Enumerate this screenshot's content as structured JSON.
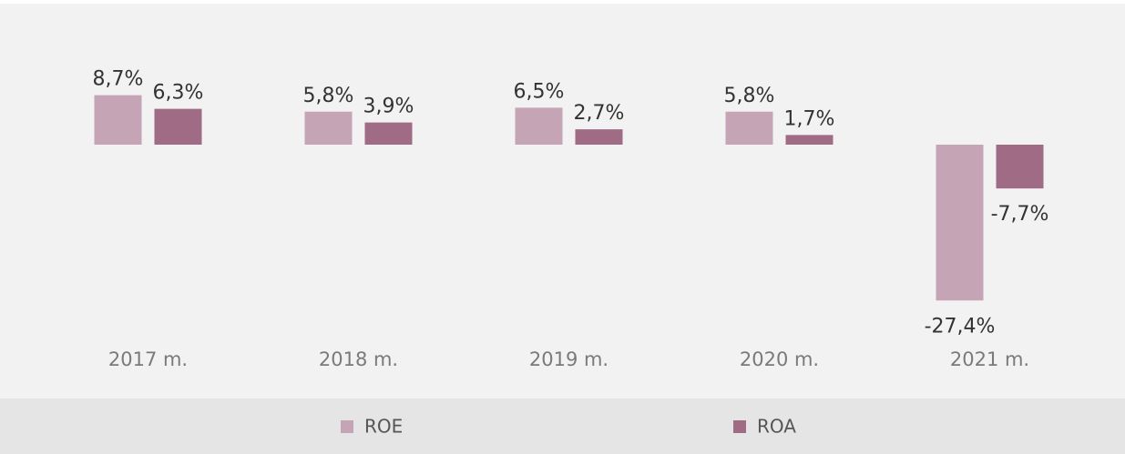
{
  "chart_data": {
    "type": "bar",
    "categories": [
      "2017 m.",
      "2018 m.",
      "2019 m.",
      "2020 m.",
      "2021 m."
    ],
    "series": [
      {
        "name": "ROE",
        "color": "#c4a4b5",
        "values": [
          8.7,
          5.8,
          6.5,
          5.8,
          -27.4
        ],
        "value_labels": [
          "8,7%",
          "5,8%",
          "6,5%",
          "5,8%",
          "-27,4%"
        ]
      },
      {
        "name": "ROA",
        "color": "#a06b85",
        "values": [
          6.3,
          3.9,
          2.7,
          1.7,
          -7.7
        ],
        "value_labels": [
          "6,3%",
          "3,9%",
          "2,7%",
          "1,7%",
          "-7,7%"
        ]
      }
    ]
  }
}
